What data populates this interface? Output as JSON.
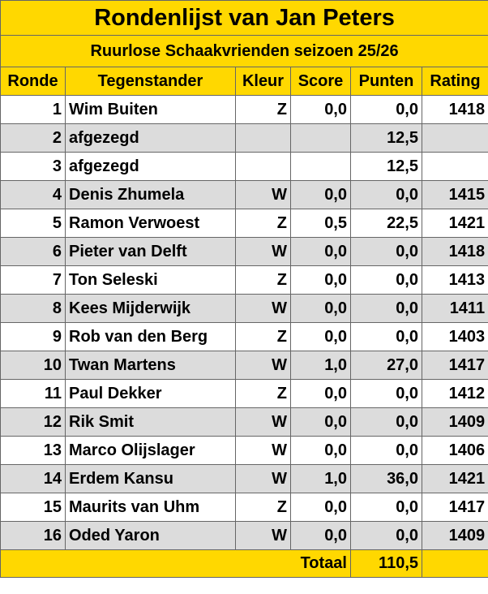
{
  "title": "Rondenlijst van Jan Peters",
  "subtitle": "Ruurlose Schaakvrienden seizoen 25/26",
  "table": {
    "header": [
      "Ronde",
      "Tegenstander",
      "Kleur",
      "Score",
      "Punten",
      "Rating"
    ],
    "rows": [
      [
        "1",
        "Wim Buiten",
        "Z",
        "0,0",
        "0,0",
        "1418"
      ],
      [
        "2",
        "afgezegd",
        null,
        null,
        "12,5",
        null
      ],
      [
        "3",
        "afgezegd",
        null,
        null,
        "12,5",
        null
      ],
      [
        "4",
        "Denis Zhumela",
        "W",
        "0,0",
        "0,0",
        "1415"
      ],
      [
        "5",
        "Ramon Verwoest",
        "Z",
        "0,5",
        "22,5",
        "1421"
      ],
      [
        "6",
        "Pieter van Delft",
        "W",
        "0,0",
        "0,0",
        "1418"
      ],
      [
        "7",
        "Ton Seleski",
        "Z",
        "0,0",
        "0,0",
        "1413"
      ],
      [
        "8",
        "Kees Mijderwijk",
        "W",
        "0,0",
        "0,0",
        "1411"
      ],
      [
        "9",
        "Rob van den Berg",
        "Z",
        "0,0",
        "0,0",
        "1403"
      ],
      [
        "10",
        "Twan Martens",
        "W",
        "1,0",
        "27,0",
        "1417"
      ],
      [
        "11",
        "Paul Dekker",
        "Z",
        "0,0",
        "0,0",
        "1412"
      ],
      [
        "12",
        "Rik Smit",
        "W",
        "0,0",
        "0,0",
        "1409"
      ],
      [
        "13",
        "Marco Olijslager",
        "W",
        "0,0",
        "0,0",
        "1406"
      ],
      [
        "14",
        "Erdem Kansu",
        "W",
        "1,0",
        "36,0",
        "1421"
      ],
      [
        "15",
        "Maurits van Uhm",
        "Z",
        "0,0",
        "0,0",
        "1417"
      ],
      [
        "16",
        "Oded Yaron",
        "W",
        "0,0",
        "0,0",
        "1409"
      ]
    ],
    "total": {
      "label": "Totaal",
      "value": "110,5"
    }
  }
}
